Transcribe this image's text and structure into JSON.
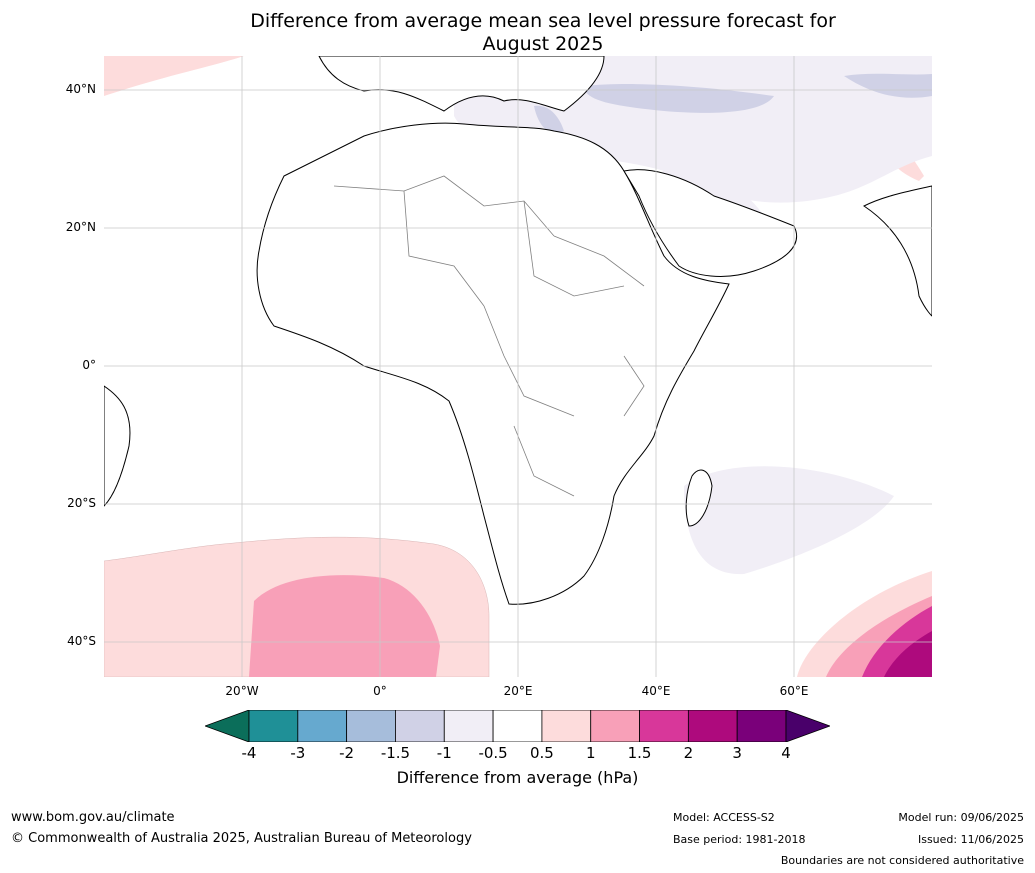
{
  "title": {
    "line1": "Difference from average mean sea level pressure forecast for",
    "line2": "August 2025"
  },
  "map": {
    "lat_labels": [
      "40°N",
      "20°N",
      "0°",
      "20°S",
      "40°S"
    ],
    "lon_labels": [
      "20°W",
      "0°",
      "20°E",
      "40°E",
      "60°E"
    ],
    "colors": {
      "land_border": "#000000",
      "country_border": "#808080",
      "grid": "#c8c8c8"
    }
  },
  "colorbar": {
    "ticks": [
      "-4",
      "-3",
      "-2",
      "-1.5",
      "-1",
      "-0.5",
      "0.5",
      "1",
      "1.5",
      "2",
      "3",
      "4"
    ],
    "colors": [
      "#0b6e5a",
      "#1f9097",
      "#66a9cf",
      "#a6bddb",
      "#d0d1e6",
      "#f1eef6",
      "#ffffff",
      "#fddcdc",
      "#f8a0b8",
      "#d8379a",
      "#ae0a7d",
      "#7a007a",
      "#49006a"
    ],
    "label": "Difference from average (hPa)"
  },
  "footer": {
    "url": "www.bom.gov.au/climate",
    "copyright": "© Commonwealth of Australia 2025, Australian Bureau of Meteorology",
    "model": "Model: ACCESS-S2",
    "base_period": "Base period: 1981-2018",
    "model_run": "Model run: 09/06/2025",
    "issued": "Issued: 11/06/2025",
    "disclaimer": "Boundaries are not considered authoritative"
  }
}
